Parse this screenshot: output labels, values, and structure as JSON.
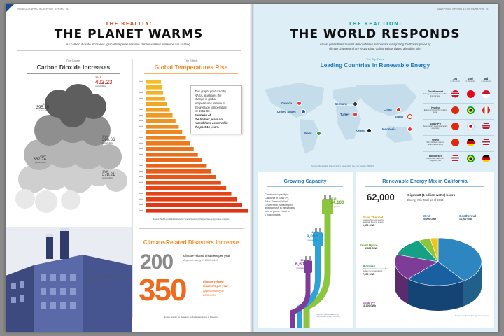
{
  "left_page": {
    "folio": "20 INFOGRAPHIC BLUEPRINT SPRING 16",
    "kicker": "THE REALITY:",
    "headline": "THE PLANET WARMS",
    "deck": "As carbon dioxide increases, global temperatures and climate-related problems are soaring.",
    "co2": {
      "cause_label": "The Cause:",
      "title": "Carbon Dioxide Increases",
      "unit": "parts/million",
      "readings": [
        {
          "year": "2015",
          "value": "402.23",
          "highlight": true
        },
        {
          "year": "2013",
          "value": "395.29",
          "highlight": false
        },
        {
          "year": "2009",
          "value": "386.66",
          "highlight": false
        },
        {
          "year": "2007",
          "value": "382.74",
          "highlight": false
        },
        {
          "year": "2005",
          "value": "378.21",
          "highlight": false
        }
      ],
      "source": "Source: NASA Global Climate Change Vital Signs of the Planet; International Panel on Climate Change"
    },
    "temps": {
      "effect_label": "The Effect:",
      "title": "Global Temperatures Rise",
      "note_lines": [
        "This graph, produced by",
        "NASA, illustrates the",
        "change in global",
        "temperatures relative to",
        "the average temperature",
        "for 1951-80."
      ],
      "note_italic_lines": [
        "Fourteen of",
        "the hottest years on",
        "record have occurred in",
        "the past 15 years."
      ],
      "source": "Source: NASA Goddard Institute for Space Studies (GISS) surface temperature analysis"
    },
    "disasters": {
      "title": "Climate-Related Disasters Increase",
      "first_value": "200",
      "first_label": "climate-related disasters per year",
      "first_period": "Approximately in 1980-1999",
      "second_value": "350",
      "second_label_lines": [
        "climate-related",
        "disasters per year"
      ],
      "second_period_lines": [
        "Approximately in",
        "2000-2009"
      ],
      "source": "Source: Center for Research on the Epidemiology of Disasters"
    }
  },
  "right_page": {
    "folio": "BLUEPRINT SPRING 16 INFOGRAPHIC 21",
    "kicker": "THE REACTION:",
    "headline": "THE WORLD RESPONDS",
    "deck_lines": [
      "As last year's Paris Summit demonstrated, nations are recognizing the threats posed by",
      "climate change and are responding. California has played a leading role."
    ],
    "leaders": {
      "kicker": "The Top Three",
      "title": "Leading Countries in Renewable Energy",
      "countries": [
        "Canada",
        "United States",
        "Germany",
        "Turkey",
        "China",
        "Japan",
        "Brazil",
        "Kenya",
        "Indonesia"
      ],
      "rank_headers": [
        {
          "rank": "1st",
          "sub": "in the world"
        },
        {
          "rank": "2nd",
          "sub": "in the world"
        },
        {
          "rank": "3rd",
          "sub": "in the world"
        }
      ],
      "categories": [
        {
          "name": "Geothermal",
          "desc": "Energy created by the earth's internal heat"
        },
        {
          "name": "Hydro",
          "desc": "Energy produced by running water"
        },
        {
          "name": "Solar PV",
          "desc": "Solar panels used to generate electricity"
        },
        {
          "name": "Wind",
          "desc": "Wind turbines used to generate electricity"
        },
        {
          "name": "Biodiesel",
          "desc": "Diesel fuel made from vegetable oils"
        }
      ],
      "source": "Source: Renewable Energy Policy Network for the 21st Century (REN21)"
    },
    "growing": {
      "title": "Growing Capacity",
      "description_lines": [
        "Combined capacity in",
        "California of Solar PV,",
        "Solar Thermal, Wind,",
        "Geothermal, Small Hydro",
        "and Biomass in megawatts",
        "(unit of power equal to",
        "1 million watts)"
      ],
      "points": [
        {
          "year": "2019",
          "value": "14,100",
          "unit": "megawatts"
        },
        {
          "year": "2015",
          "value": "9,000",
          "unit": "megawatts"
        },
        {
          "year": "2010",
          "value": "6,600",
          "unit": "megawatts"
        }
      ],
      "source": "Source: California Energy Commission, Sept. 4, 2015"
    },
    "mix": {
      "title": "Renewable Energy Mix in California",
      "total": "62,000",
      "total_label": "Gigawatt (1 billion watts) hours",
      "total_sub": "Energy Mix Total as of 2014",
      "segments": [
        {
          "name": "Solar Thermal",
          "desc": "Solar technology used to generate thermal energy",
          "value": "1,850 GWh",
          "color": "#f0c419"
        },
        {
          "name": "Wind",
          "desc": "",
          "value": "25,000 GWh",
          "color": "#2e86c1"
        },
        {
          "name": "Geothermal",
          "desc": "",
          "value": "14,000 GWh",
          "color": "#1a5fa0"
        },
        {
          "name": "Small Hydro",
          "desc": "",
          "value": "2,800 GWh",
          "color": "#8cc63f"
        },
        {
          "name": "Biomass",
          "desc": "Organic material used as fuel, usually to power plants",
          "value": "7,950 GWh",
          "color": "#16a085"
        },
        {
          "name": "Solar PV",
          "desc": "",
          "value": "11,100 GWh",
          "color": "#7d3c98"
        }
      ],
      "source": "Source: California Energy Commission"
    }
  }
}
